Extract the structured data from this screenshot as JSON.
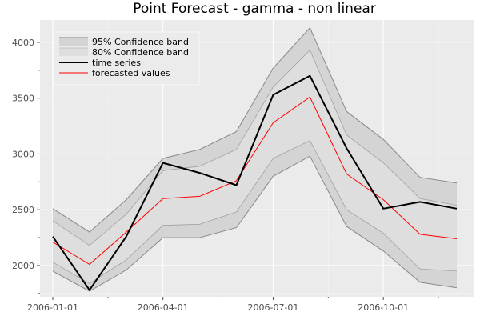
{
  "chart_data": {
    "type": "line",
    "title": "Point Forecast - gamma - non linear",
    "xlabel": "",
    "ylabel": "",
    "x": [
      "2006-01-01",
      "2006-02-01",
      "2006-03-01",
      "2006-04-01",
      "2006-05-01",
      "2006-06-01",
      "2006-07-01",
      "2006-08-01",
      "2006-09-01",
      "2006-10-01",
      "2006-11-01",
      "2006-12-01"
    ],
    "x_ticks": [
      "2006-01-01",
      "2006-04-01",
      "2006-07-01",
      "2006-10-01"
    ],
    "ylim": [
      1720,
      4200
    ],
    "y_ticks": [
      2000,
      2500,
      3000,
      3500,
      4000
    ],
    "grid": true,
    "legend_position": "top-left",
    "bands": [
      {
        "name": "95% Confidence band",
        "upper": [
          2510,
          2300,
          2590,
          2960,
          3040,
          3200,
          3770,
          4130,
          3380,
          3130,
          2790,
          2740
        ],
        "lower": [
          1950,
          1770,
          1960,
          2250,
          2250,
          2340,
          2800,
          2980,
          2350,
          2130,
          1850,
          1800
        ]
      },
      {
        "name": "80% Confidence band",
        "upper": [
          2400,
          2180,
          2460,
          2850,
          2890,
          3040,
          3600,
          3930,
          3170,
          2920,
          2600,
          2540
        ],
        "lower": [
          2030,
          1840,
          2050,
          2360,
          2370,
          2480,
          2960,
          3120,
          2500,
          2290,
          1970,
          1950
        ]
      }
    ],
    "series": [
      {
        "name": "time series",
        "values": [
          2260,
          1780,
          2260,
          2920,
          2830,
          2720,
          3530,
          3700,
          3050,
          2510,
          2570,
          2510
        ]
      },
      {
        "name": "forecasted values",
        "values": [
          2210,
          2010,
          2300,
          2600,
          2620,
          2760,
          3280,
          3510,
          2820,
          2590,
          2280,
          2240
        ]
      }
    ],
    "colors": {
      "panel": "#ebebeb",
      "grid": "#ffffff",
      "band95_fill": "#d4d4d4",
      "band80_fill": "#dedede",
      "band_edge": "#7f7f7f",
      "time_series": "#000000",
      "forecast": "#ff0000"
    }
  }
}
